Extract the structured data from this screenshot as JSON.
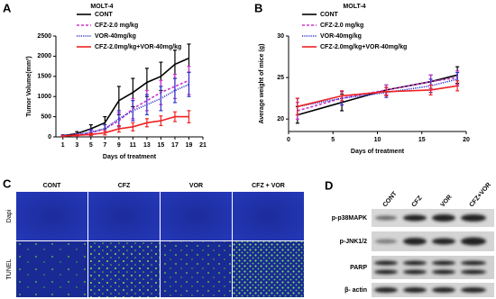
{
  "chart_data": [
    {
      "type": "line",
      "panel": "A",
      "title": "MOLT-4",
      "xlabel": "Days of treatment",
      "ylabel": "Tumor Volume(mm³)",
      "x": [
        1,
        3,
        5,
        7,
        9,
        11,
        13,
        15,
        17,
        19
      ],
      "xlim": [
        0,
        21
      ],
      "xticks": [
        1,
        3,
        5,
        7,
        9,
        11,
        13,
        15,
        17,
        19,
        21
      ],
      "ylim": [
        0,
        2500
      ],
      "yticks": [
        0,
        500,
        1000,
        1500,
        2000,
        2500
      ],
      "series": [
        {
          "name": "CONT",
          "color": "#000000",
          "dash": "solid",
          "values": [
            30,
            80,
            200,
            350,
            900,
            1100,
            1350,
            1500,
            1800,
            1950
          ],
          "errors": [
            20,
            50,
            100,
            150,
            350,
            350,
            350,
            350,
            350,
            350
          ]
        },
        {
          "name": "CFZ-2.0 mg/kg",
          "color": "#cc33cc",
          "dash": "dashed",
          "values": [
            30,
            50,
            100,
            200,
            400,
            700,
            900,
            1100,
            1250,
            1400
          ],
          "errors": [
            15,
            30,
            60,
            100,
            200,
            250,
            250,
            300,
            300,
            350
          ]
        },
        {
          "name": "VOR-40mg/kg",
          "color": "#3333cc",
          "dash": "dotted",
          "values": [
            30,
            50,
            120,
            200,
            450,
            650,
            800,
            950,
            1150,
            1300
          ],
          "errors": [
            15,
            30,
            60,
            100,
            200,
            250,
            250,
            300,
            300,
            300
          ]
        },
        {
          "name": "CFZ-2.0mg/kg+VOR-40mg/kg",
          "color": "#ee2222",
          "dash": "solid",
          "values": [
            20,
            40,
            60,
            100,
            200,
            250,
            350,
            400,
            500,
            500
          ],
          "errors": [
            10,
            20,
            30,
            50,
            80,
            100,
            100,
            120,
            120,
            150
          ]
        }
      ]
    },
    {
      "type": "line",
      "panel": "B",
      "title": "MOLT-4",
      "xlabel": "Days of treatment",
      "ylabel": "Average weight of mice (g)",
      "x": [
        1,
        6,
        11,
        16,
        19
      ],
      "xlim": [
        0,
        20
      ],
      "xticks": [
        0,
        5,
        10,
        15,
        20
      ],
      "ylim": [
        18.5,
        30
      ],
      "yticks": [
        20,
        25,
        30
      ],
      "series": [
        {
          "name": "CONT",
          "color": "#000000",
          "dash": "solid",
          "values": [
            20.5,
            22,
            23.5,
            24.5,
            25.3
          ],
          "errors": [
            1,
            1,
            0.6,
            0.8,
            1
          ]
        },
        {
          "name": "CFZ-2.0 mg/kg",
          "color": "#cc33cc",
          "dash": "dashed",
          "values": [
            21,
            22.5,
            23.5,
            24.5,
            25
          ],
          "errors": [
            1,
            0.8,
            0.6,
            0.8,
            0.8
          ]
        },
        {
          "name": "VOR-40mg/kg",
          "color": "#3333cc",
          "dash": "dotted",
          "values": [
            21.5,
            22.5,
            23.2,
            24,
            24.8
          ],
          "errors": [
            1,
            0.8,
            0.6,
            0.8,
            0.8
          ]
        },
        {
          "name": "CFZ-2.0mg/kg+VOR-40mg/kg",
          "color": "#ee2222",
          "dash": "solid",
          "values": [
            21.5,
            22.8,
            23.3,
            23.5,
            24
          ],
          "errors": [
            1,
            0.6,
            0.5,
            0.6,
            0.6
          ]
        }
      ]
    }
  ],
  "microscopy": {
    "panel": "C",
    "columns": [
      "CONT",
      "CFZ",
      "VOR",
      "CFZ + VOR"
    ],
    "rows": [
      "Dapi",
      "TUNEL"
    ]
  },
  "western_blot": {
    "panel": "D",
    "columns": [
      "CONT",
      "CFZ",
      "VOR",
      "CFZ+VOR"
    ],
    "rows": [
      "p-p38MAPK",
      "p-JNK1/2",
      "PARP",
      "β- actin"
    ]
  }
}
